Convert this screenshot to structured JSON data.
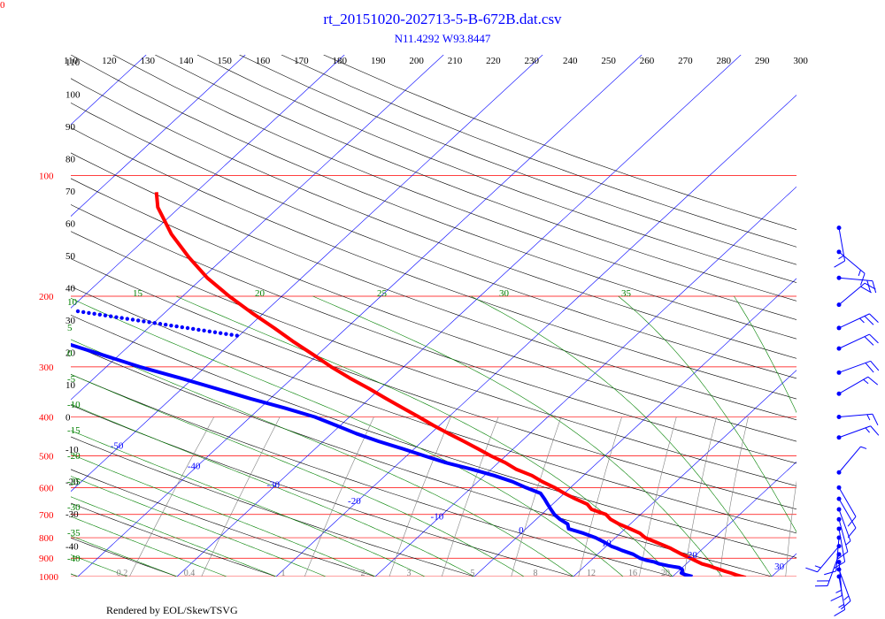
{
  "corner_label": "0",
  "title": "rt_20151020-202713-5-B-672B.dat.csv",
  "subtitle": "N11.4292 W93.8447",
  "footer": "Rendered by EOL/SkewTSVG",
  "colors": {
    "pressure_lines": "#ff0000",
    "isotherms": "#0000ff",
    "dry_adiabats": "#000000",
    "moist_adiabats": "#008000",
    "mixing_ratio": "#808080",
    "temperature": "#ff0000",
    "dewpoint": "#0000ff",
    "wind": "#0000ff"
  },
  "chart_data": {
    "type": "skew-t",
    "p_range": [
      1000,
      50
    ],
    "top_scale_ticks": [
      "110",
      "120",
      "130",
      "140",
      "150",
      "160",
      "170",
      "180",
      "190",
      "200",
      "210",
      "220",
      "230",
      "240",
      "250",
      "260",
      "270",
      "280",
      "290",
      "300"
    ],
    "pressure_ticks": [
      1000,
      900,
      800,
      700,
      600,
      500,
      400,
      300,
      200,
      100
    ],
    "isotherm_labels": [
      -110,
      -100,
      -90,
      -80,
      -70,
      -60,
      -50,
      -40,
      -30,
      -20,
      -10,
      0,
      10,
      20,
      30,
      40
    ],
    "dry_adiabat_labels": [
      110,
      100,
      90,
      80,
      70,
      60,
      50,
      40,
      30,
      20,
      10,
      0,
      -10,
      -20,
      -30,
      -40
    ],
    "moist_adiabat_labels": [
      15,
      20,
      25,
      30,
      35,
      10,
      5,
      0,
      -5,
      -10,
      -15,
      -20,
      -25,
      -30,
      -35,
      -40
    ],
    "mixing_ratio_labels": [
      "0.2",
      "0.4",
      "1",
      "2",
      "3",
      "5",
      "8",
      "12",
      "16",
      "20"
    ],
    "temperature": {
      "p": [
        1006,
        1000,
        990,
        980,
        970,
        960,
        950,
        940,
        930,
        920,
        910,
        900,
        880,
        860,
        850,
        840,
        820,
        800,
        780,
        760,
        740,
        720,
        700,
        680,
        660,
        640,
        620,
        600,
        580,
        560,
        540,
        520,
        500,
        480,
        460,
        440,
        420,
        400,
        380,
        360,
        340,
        320,
        300,
        280,
        260,
        240,
        220,
        200,
        180,
        160,
        140,
        120,
        110
      ],
      "t": [
        27.5,
        27.0,
        26.2,
        25.5,
        24.7,
        24.0,
        23.2,
        22.5,
        21.6,
        21.0,
        20.4,
        19.8,
        18.5,
        17.3,
        16.7,
        16.0,
        14.5,
        13.0,
        12.0,
        10.5,
        8.9,
        7.5,
        6.5,
        4.5,
        3.5,
        1.7,
        0.0,
        -1.6,
        -3.5,
        -5.2,
        -7.5,
        -9.3,
        -11.5,
        -13.6,
        -15.8,
        -18.2,
        -20.6,
        -23.0,
        -25.6,
        -28.3,
        -31.1,
        -34.2,
        -37.3,
        -40.4,
        -43.8,
        -47.3,
        -51.2,
        -55.3,
        -59.5,
        -63.6,
        -67.9,
        -72.2,
        -74.0
      ]
    },
    "dewpoint": {
      "p": [
        1000,
        990,
        980,
        970,
        960,
        950,
        940,
        930,
        920,
        910,
        900,
        880,
        860,
        850,
        840,
        820,
        800,
        780,
        760,
        740,
        720,
        700,
        680,
        660,
        640,
        620,
        600,
        580,
        560,
        540,
        520,
        500,
        480,
        460,
        440,
        420,
        400,
        380,
        360,
        340,
        320,
        300,
        280,
        260,
        240,
        220,
        200,
        180
      ],
      "td": [
        22.0,
        21.1,
        20.5,
        20.4,
        20.2,
        19.7,
        18.4,
        17.3,
        16.6,
        15.5,
        14.7,
        13.6,
        12.0,
        11.3,
        10.5,
        9.3,
        8.0,
        6.3,
        4.3,
        3.7,
        2.4,
        1.3,
        0.4,
        -0.5,
        -1.4,
        -2.4,
        -4.5,
        -6.5,
        -9.0,
        -12.0,
        -15.3,
        -18.2,
        -21.2,
        -24.4,
        -27.5,
        -30.4,
        -33.5,
        -37.5,
        -42.0,
        -46.5,
        -51.3,
        -56.6,
        -61.7,
        -67.2,
        -72.6,
        -78.0,
        -84.0,
        -90.0
      ]
    },
    "wind_barbs": [
      {
        "p": 1000,
        "dir": 170,
        "spd": 15
      },
      {
        "p": 960,
        "dir": 160,
        "spd": 15
      },
      {
        "p": 920,
        "dir": 175,
        "spd": 15
      },
      {
        "p": 880,
        "dir": 200,
        "spd": 20
      },
      {
        "p": 840,
        "dir": 220,
        "spd": 15
      },
      {
        "p": 800,
        "dir": 185,
        "spd": 10
      },
      {
        "p": 760,
        "dir": 170,
        "spd": 10
      },
      {
        "p": 720,
        "dir": 165,
        "spd": 10
      },
      {
        "p": 680,
        "dir": 160,
        "spd": 5
      },
      {
        "p": 640,
        "dir": 150,
        "spd": 10
      },
      {
        "p": 600,
        "dir": 150,
        "spd": 10
      },
      {
        "p": 550,
        "dir": 40,
        "spd": 5
      },
      {
        "p": 450,
        "dir": 70,
        "spd": 15
      },
      {
        "p": 400,
        "dir": 85,
        "spd": 15
      },
      {
        "p": 350,
        "dir": 60,
        "spd": 15
      },
      {
        "p": 310,
        "dir": 70,
        "spd": 20
      },
      {
        "p": 270,
        "dir": 65,
        "spd": 20
      },
      {
        "p": 240,
        "dir": 65,
        "spd": 25
      },
      {
        "p": 210,
        "dir": 50,
        "spd": 20
      },
      {
        "p": 180,
        "dir": 95,
        "spd": 20
      },
      {
        "p": 155,
        "dir": 130,
        "spd": 15
      },
      {
        "p": 135,
        "dir": 170,
        "spd": 15
      }
    ]
  }
}
